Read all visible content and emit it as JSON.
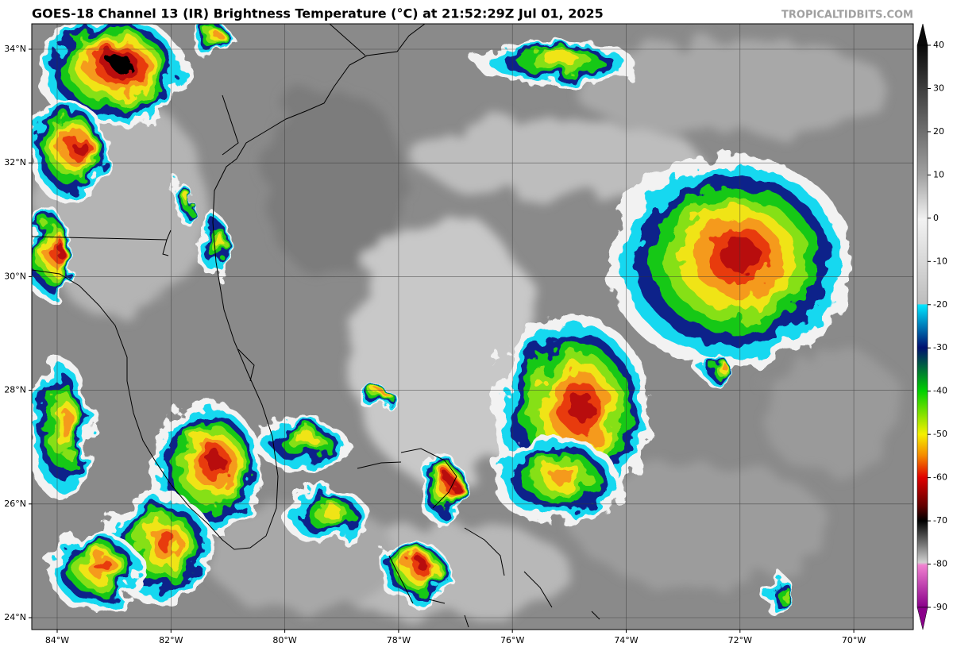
{
  "header": {
    "title": "GOES-18 Channel 13 (IR) Brightness Temperature (°C) at 21:52:29Z Jul 01, 2025",
    "watermark": "TROPICALTIDBITS.COM"
  },
  "map": {
    "lat_labels": [
      "34°N",
      "32°N",
      "30°N",
      "28°N",
      "26°N",
      "24°N"
    ],
    "lon_labels": [
      "84°W",
      "82°W",
      "80°W",
      "78°W",
      "76°W",
      "74°W",
      "72°W",
      "70°W"
    ]
  },
  "colorbar": {
    "range": [
      -90,
      40
    ],
    "ticks": [
      40,
      30,
      20,
      10,
      0,
      -10,
      -20,
      -30,
      -40,
      -50,
      -60,
      -70,
      -80,
      -90
    ]
  }
}
